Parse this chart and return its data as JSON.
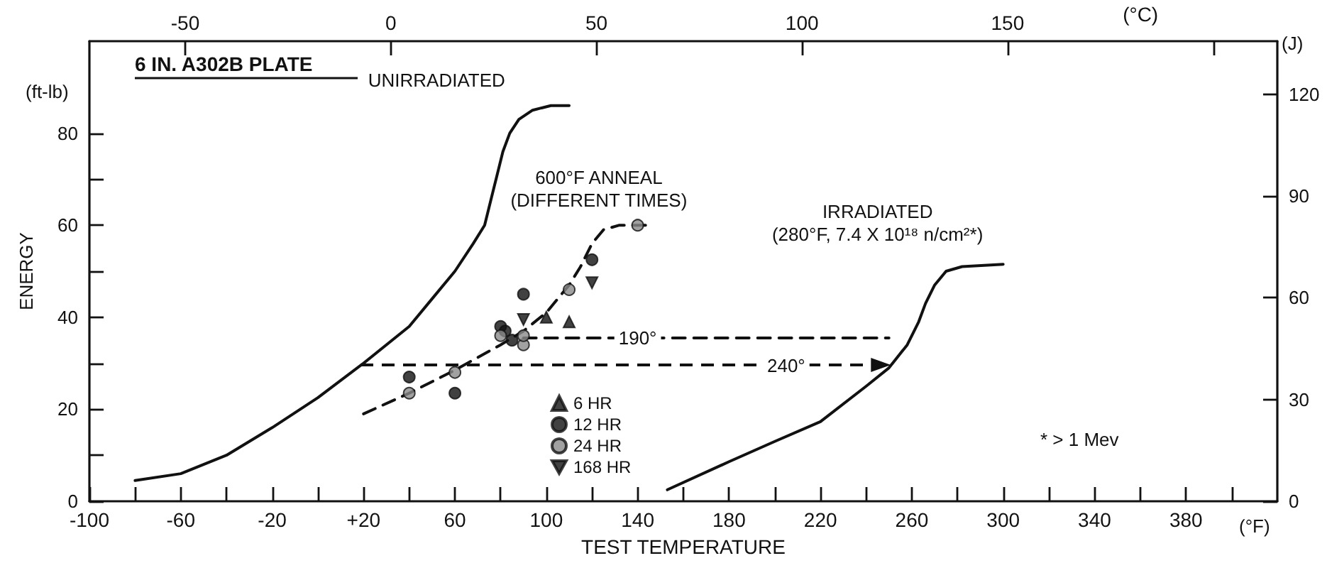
{
  "chart_data": {
    "type": "line",
    "xlabel": "TEST TEMPERATURE",
    "ylabel": "ENERGY",
    "x2label": "(°C)",
    "y2label": "(J)",
    "xlim": [
      -100,
      420
    ],
    "xticks": [
      -100,
      {
        "value": -80,
        "label": null
      },
      -60,
      {
        "value": -40,
        "label": null
      },
      -20,
      {
        "value": 0,
        "label": null
      },
      {
        "value": 20,
        "label": "+20"
      },
      {
        "value": 40,
        "label": null
      },
      60,
      {
        "value": 80,
        "label": null
      },
      100,
      {
        "value": 120,
        "label": null
      },
      140,
      {
        "value": 160,
        "label": null
      },
      180,
      {
        "value": 200,
        "label": null
      },
      220,
      {
        "value": 240,
        "label": null
      },
      260,
      {
        "value": 280,
        "label": null
      },
      300,
      {
        "value": 320,
        "label": null
      },
      340,
      {
        "value": 360,
        "label": null
      },
      380,
      {
        "value": 400,
        "label": null
      }
    ],
    "x2lim": [
      -73.3,
      215.6
    ],
    "x2ticks": [
      -50,
      0,
      50,
      100,
      150,
      {
        "value": 200,
        "label": null
      }
    ],
    "ylim": [
      0,
      100
    ],
    "yticks": [
      0,
      {
        "value": 10,
        "label": null
      },
      20,
      {
        "value": 30,
        "label": null
      },
      40,
      {
        "value": 50,
        "label": null
      },
      60,
      {
        "value": 70,
        "label": null
      },
      80
    ],
    "y2lim": [
      0,
      135.6
    ],
    "y2ticks": [
      0,
      30,
      60,
      90,
      120
    ],
    "grid": false,
    "legend": "bottom",
    "series": [
      {
        "name": "UNIRRADIATED",
        "color": "#111111",
        "marker": "none",
        "line_style": "solid",
        "x": [
          -80,
          -60,
          -40,
          -20,
          0,
          20,
          40,
          50,
          60,
          68,
          73,
          76,
          78,
          81,
          84,
          88,
          94,
          102,
          110
        ],
        "values": [
          4.5,
          6,
          10,
          16,
          22.5,
          30,
          38,
          44,
          50,
          56,
          60,
          66,
          70,
          76,
          80,
          83,
          85,
          86,
          86
        ]
      },
      {
        "name": "600°F ANNEAL (DIFFERENT TIMES)",
        "color": "#111111",
        "marker": "none",
        "line_style": "dashed",
        "x": [
          20,
          40,
          60,
          80,
          90,
          100,
          110,
          115,
          120,
          125,
          132,
          145
        ],
        "values": [
          19,
          23.5,
          28.5,
          34,
          37,
          41,
          47,
          51,
          56,
          59,
          60,
          60
        ]
      },
      {
        "name": "IRRADIATED (280°F, 7.4 X 10¹⁸ n/cm²*)",
        "color": "#111111",
        "marker": "none",
        "line_style": "solid",
        "x": [
          153,
          180,
          200,
          220,
          240,
          250,
          258,
          263,
          266,
          270,
          275,
          282,
          300
        ],
        "values": [
          2.5,
          8.6,
          13,
          17.3,
          25,
          29,
          34,
          39,
          43,
          47,
          50,
          51,
          51.5
        ]
      },
      {
        "type": "scatter",
        "name": "6 HR",
        "color": "#111111",
        "marker": "triangle",
        "x": [
          100,
          110
        ],
        "values": [
          40,
          39
        ]
      },
      {
        "type": "scatter",
        "name": "12 HR",
        "color": "#111111",
        "marker": "circle",
        "x": [
          40,
          60,
          80,
          82,
          85,
          90,
          120
        ],
        "values": [
          27,
          23.5,
          38,
          37,
          35,
          45,
          52.5
        ]
      },
      {
        "type": "scatter",
        "name": "24 HR",
        "color": "#8a8a8a",
        "marker": "circle",
        "x": [
          40,
          60,
          80,
          90,
          90,
          110,
          140
        ],
        "values": [
          23.5,
          28,
          36,
          34,
          36,
          46,
          60
        ]
      },
      {
        "type": "scatter",
        "name": "168 HR",
        "color": "#111111",
        "marker": "triangle-down",
        "x": [
          90,
          120
        ],
        "values": [
          39.5,
          47.5
        ]
      },
      {
        "color": "#111111",
        "marker": "none",
        "line_style": "dashed",
        "x": [
          90,
          250
        ],
        "values": [
          35.5,
          35.5
        ]
      }
    ],
    "annotations": [
      "6 IN. A302B PLATE",
      "(ft-lb)",
      "(°F)",
      "* > 1 Mev",
      {
        "text": "190°",
        "x": 140,
        "y": 35.5
      },
      {
        "text": "240°",
        "x": 205,
        "y": 29.5
      }
    ]
  }
}
